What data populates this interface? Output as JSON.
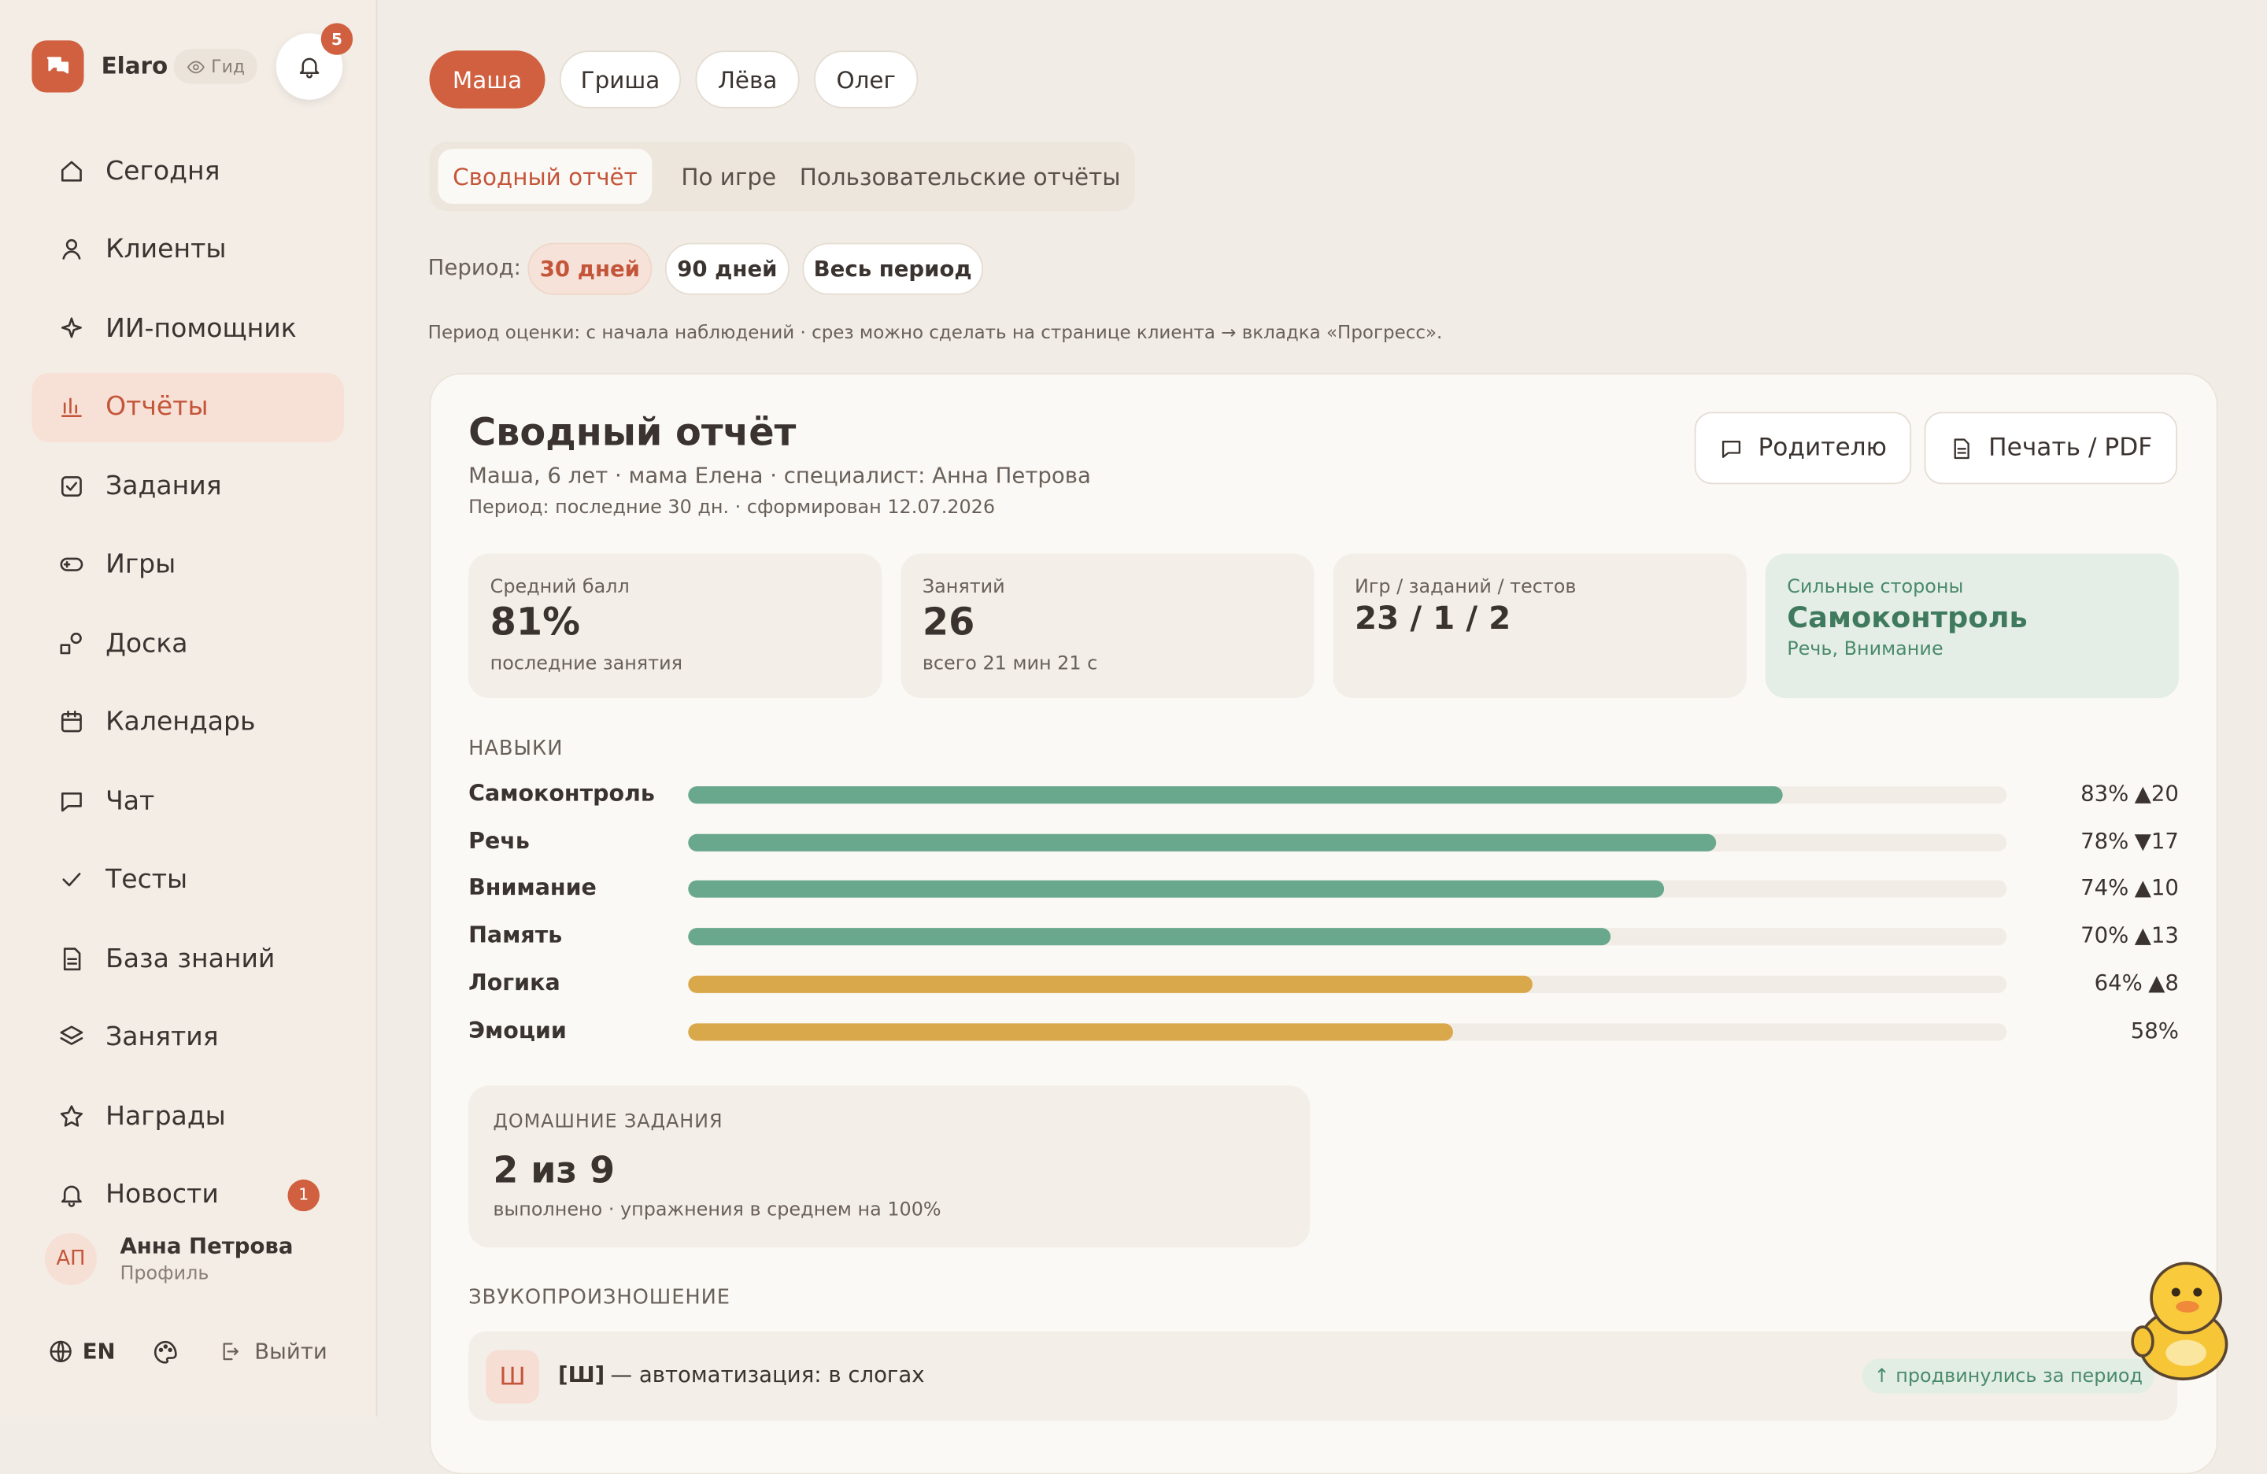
{
  "sidebar": {
    "brand": "Elaro",
    "mode": "Гид",
    "notifications": "5",
    "nav": [
      {
        "label": "Сегодня"
      },
      {
        "label": "Клиенты"
      },
      {
        "label": "ИИ-помощник"
      },
      {
        "label": "Отчёты",
        "active": true
      },
      {
        "label": "Задания"
      },
      {
        "label": "Игры"
      },
      {
        "label": "Доска"
      },
      {
        "label": "Календарь"
      },
      {
        "label": "Чат"
      },
      {
        "label": "Тесты"
      },
      {
        "label": "База знаний"
      },
      {
        "label": "Занятия"
      },
      {
        "label": "Награды"
      },
      {
        "label": "Новости",
        "badge": "1"
      }
    ],
    "user": {
      "initials": "АП",
      "name": "Анна Петрова",
      "link": "Профиль"
    },
    "footer": {
      "lang": "EN",
      "logout": "Выйти"
    }
  },
  "clients": [
    {
      "label": "Маша",
      "active": true
    },
    {
      "label": "Гриша"
    },
    {
      "label": "Лёва"
    },
    {
      "label": "Олег"
    }
  ],
  "tabs": [
    {
      "label": "Сводный отчёт",
      "active": true
    },
    {
      "label": "По игре"
    },
    {
      "label": "Пользовательские отчёты"
    }
  ],
  "period": {
    "label": "Период:",
    "options": [
      {
        "label": "30 дней",
        "active": true
      },
      {
        "label": "90 дней"
      },
      {
        "label": "Весь период"
      }
    ]
  },
  "note": "Период оценки: с начала наблюдений · срез можно сделать на странице клиента → вкладка «Прогресс».",
  "report": {
    "title": "Сводный отчёт",
    "subtitle": "Маша, 6 лет · мама Елена · специалист: Анна Петрова",
    "meta": "Период: последние 30 дн. · сформирован 12.07.2026",
    "buttons": [
      "Родителю",
      "Печать / PDF"
    ],
    "stats": [
      {
        "label": "Средний балл",
        "value": "81%",
        "note": "последние занятия"
      },
      {
        "label": "Занятий",
        "value": "26",
        "note": "всего 21 мин 21 с"
      },
      {
        "label": "Игр / заданий / тестов",
        "value": "23 / 1 / 2"
      },
      {
        "label": "Сильные стороны",
        "value": "Самоконтроль",
        "note": "Речь, Внимание",
        "highlight": true
      }
    ],
    "skills_title": "НАВЫКИ",
    "skills": [
      {
        "name": "Самоконтроль",
        "value": 83,
        "label": "83%",
        "delta": "▲20",
        "color": "#6aa88e"
      },
      {
        "name": "Речь",
        "value": 78,
        "label": "78%",
        "delta": "▼17",
        "color": "#6aa88e"
      },
      {
        "name": "Внимание",
        "value": 74,
        "label": "74%",
        "delta": "▲10",
        "color": "#6aa88e"
      },
      {
        "name": "Память",
        "value": 70,
        "label": "70%",
        "delta": "▲13",
        "color": "#6aa88e"
      },
      {
        "name": "Логика",
        "value": 64,
        "label": "64%",
        "delta": "▲8",
        "color": "#d9a84a"
      },
      {
        "name": "Эмоции",
        "value": 58,
        "label": "58%",
        "color": "#d9a84a"
      }
    ],
    "homework": {
      "title": "ДОМАШНИЕ ЗАДАНИЯ",
      "value": "2 из 9",
      "note": "выполнено · упражнения в среднем на 100%"
    },
    "sound": {
      "title": "ЗВУКОПРОИЗНОШЕНИЕ",
      "items": [
        {
          "letter": "Ш",
          "code": "[Ш]",
          "text": "— автоматизация: в слогах",
          "status": "↑ продвинулись за период"
        }
      ]
    }
  }
}
